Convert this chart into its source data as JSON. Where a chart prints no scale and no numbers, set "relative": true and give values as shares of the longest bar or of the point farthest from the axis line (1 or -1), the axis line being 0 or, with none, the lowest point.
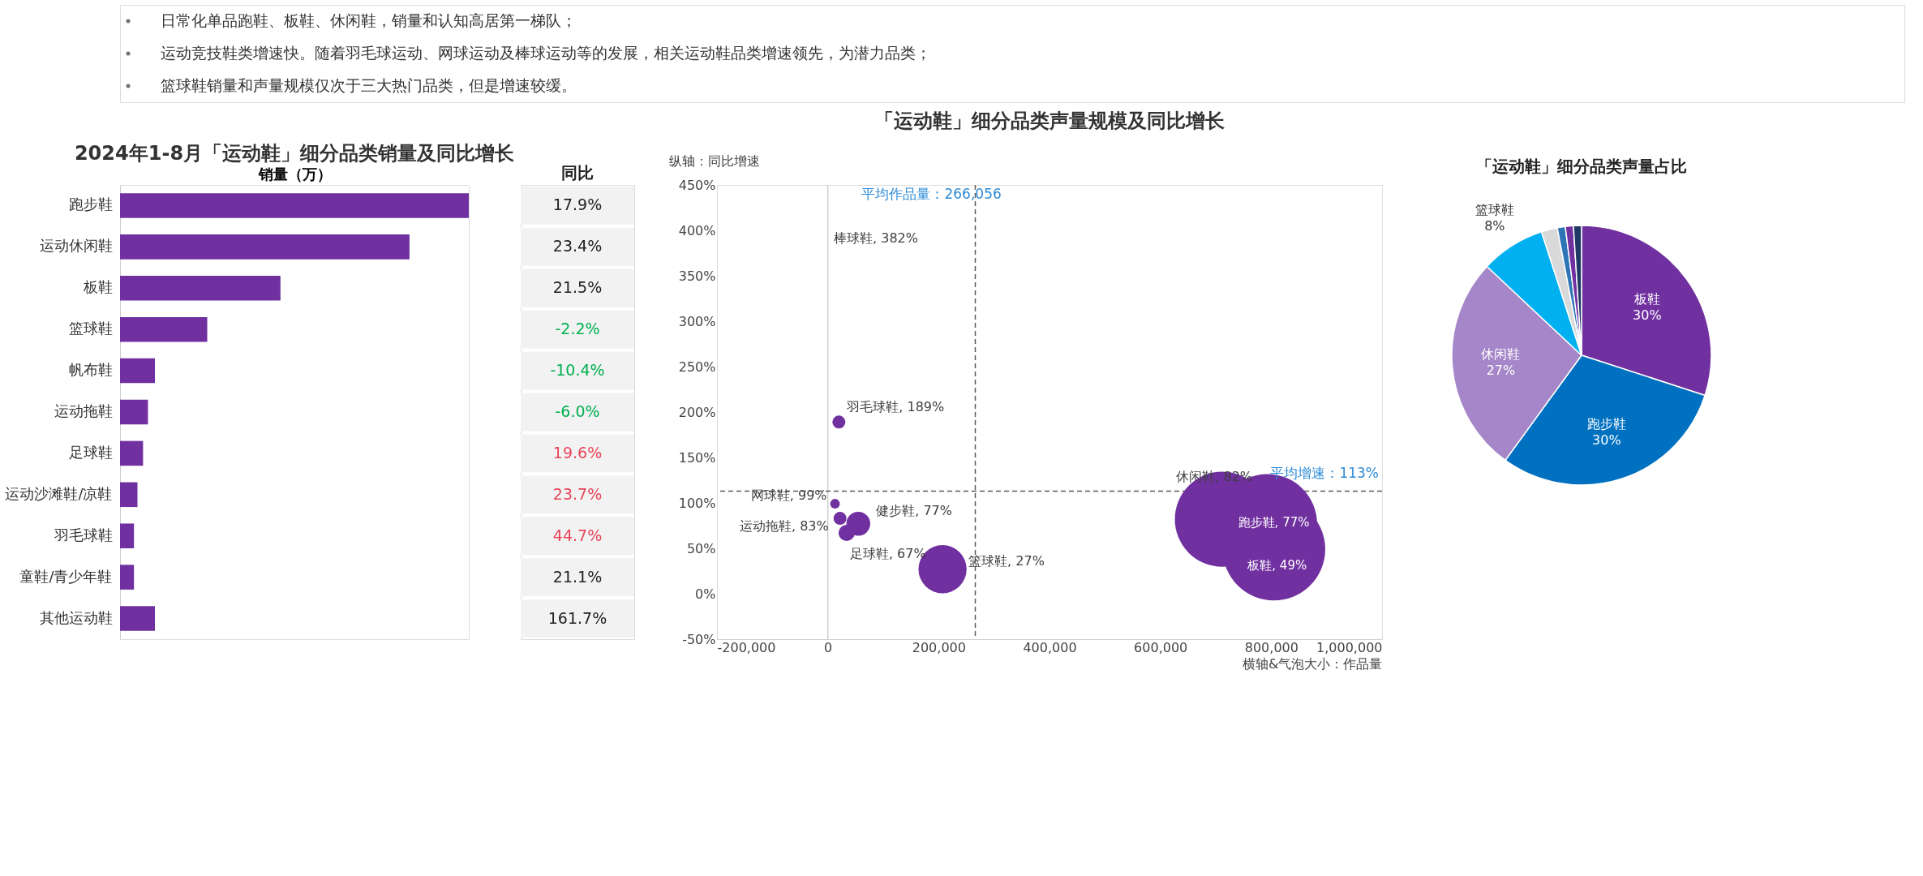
{
  "chart_data": [
    {
      "type": "bar",
      "orientation": "horizontal",
      "relative": true,
      "title": "2024年1-8月「运动鞋」细分品类销量及同比增长",
      "xlabel": "销量（万）",
      "annotations": [
        "日常化单品跑鞋、板鞋、休闲鞋，销量和认知高居第一梯队；",
        "运动竞技鞋类增速快。随着羽毛球运动、网球运动及棒球运动等的发展，相关运动鞋品类增速领先，为潜力品类；",
        "篮球鞋销量和声量规模仅次于三大热门品类，但是增速较缓。"
      ],
      "categories": [
        "跑步鞋",
        "运动休闲鞋",
        "板鞋",
        "篮球鞋",
        "帆布鞋",
        "运动拖鞋",
        "足球鞋",
        "运动沙滩鞋/凉鞋",
        "羽毛球鞋",
        "童鞋/青少年鞋",
        "其他运动鞋"
      ],
      "values": [
        1,
        0.83,
        0.46,
        0.25,
        0.1,
        0.08,
        0.066,
        0.05,
        0.04,
        0.04,
        0.1
      ],
      "color": "#7030a0"
    },
    {
      "type": "other",
      "title": "同比",
      "values": [
        17.9,
        23.4,
        21.5,
        -2.2,
        -10.4,
        -6.0,
        19.6,
        23.7,
        44.7,
        21.1,
        161.7
      ],
      "value_labels": [
        "17.9%",
        "23.4%",
        "21.5%",
        "-2.2%",
        "-10.4%",
        "-6.0%",
        "19.6%",
        "23.7%",
        "44.7%",
        "21.1%",
        "161.7%"
      ],
      "colors": [
        "#222222",
        "#222222",
        "#222222",
        "#00b050",
        "#00b050",
        "#00b050",
        "#e8455a",
        "#e8455a",
        "#e8455a",
        "#222222",
        "#222222"
      ]
    },
    {
      "type": "bubble",
      "title": "「运动鞋」细分品类声量规模及同比增长",
      "xlabel": "横轴&气泡大小：作品量",
      "ylabel": "纵轴：同比增速",
      "xlim": [
        -200000,
        1000000
      ],
      "ylim": [
        -50,
        450
      ],
      "xticks": [
        {
          "value": -200000,
          "label": "-200,000"
        },
        0,
        {
          "value": 200000,
          "label": "200,000"
        },
        {
          "value": 400000,
          "label": "400,000"
        },
        {
          "value": 600000,
          "label": "600,000"
        },
        {
          "value": 800000,
          "label": "800,000"
        },
        {
          "value": 1000000,
          "label": "1,000,000"
        }
      ],
      "yticks": [
        {
          "value": -50,
          "label": "-50%"
        },
        {
          "value": 0,
          "label": "0%"
        },
        {
          "value": 50,
          "label": "50%"
        },
        {
          "value": 100,
          "label": "100%"
        },
        {
          "value": 150,
          "label": "150%"
        },
        {
          "value": 200,
          "label": "200%"
        },
        {
          "value": 250,
          "label": "250%"
        },
        {
          "value": 300,
          "label": "300%"
        },
        {
          "value": 350,
          "label": "350%"
        },
        {
          "value": 400,
          "label": "400%"
        },
        {
          "value": 450,
          "label": "450%"
        }
      ],
      "grid": false,
      "series": [
        {
          "color": "#7030a0",
          "x": [
            20000,
            13000,
            22000,
            34000,
            55000,
            207000,
            712000,
            793000,
            805000
          ],
          "values": [
            189,
            99,
            83,
            67,
            77,
            27,
            82,
            77,
            49
          ],
          "sizes": [
            0.016,
            0.009,
            0.016,
            0.025,
            0.054,
            0.22,
            0.86,
            0.94,
            1
          ]
        }
      ],
      "ref_lines": [
        {
          "axis": "x",
          "value": 266056,
          "label": "平均作品量：266,056",
          "color": "#595959",
          "line_style": "dashed"
        },
        {
          "axis": "y",
          "value": 113,
          "label": "平均增速：113%",
          "color": "#595959",
          "line_style": "dashed"
        },
        {
          "axis": "x",
          "value": 0,
          "color": "#d0d0d0",
          "line_style": "solid"
        }
      ],
      "annotations": [
        {
          "text": "棒球鞋, 382%",
          "x": 5000,
          "y": 382
        },
        {
          "text": "羽毛球鞋, 189%",
          "x": 20000,
          "y": 189
        },
        {
          "text": "网球鞋, 99%",
          "x": 13000,
          "y": 99
        },
        {
          "text": "运动拖鞋, 83%",
          "x": 22000,
          "y": 83
        },
        {
          "text": "足球鞋, 67%",
          "x": 34000,
          "y": 67
        },
        {
          "text": "健步鞋, 77%",
          "x": 55000,
          "y": 77
        },
        {
          "text": "篮球鞋, 27%",
          "x": 207000,
          "y": 27
        },
        {
          "text": "休闲鞋, 82%",
          "x": 712000,
          "y": 82
        },
        {
          "text": "跑步鞋, 77%",
          "x": 793000,
          "y": 77
        },
        {
          "text": "板鞋, 49%",
          "x": 805000,
          "y": 49
        }
      ]
    },
    {
      "type": "pie",
      "title": "「运动鞋」细分品类声量占比",
      "categories": [
        "板鞋",
        "跑步鞋",
        "休闲鞋",
        "篮球鞋",
        null,
        null,
        null,
        null
      ],
      "values": [
        30,
        30,
        27,
        8,
        2,
        1,
        1,
        1
      ],
      "value_labels": [
        "30%",
        "30%",
        "27%",
        "8%",
        null,
        null,
        null,
        null
      ],
      "colors": [
        "#7030a0",
        "#0070c0",
        "#a586c8",
        "#00b0f0",
        "#d9d9d9",
        "#2e75b6",
        "#7030a0",
        "#1f3864"
      ]
    }
  ]
}
